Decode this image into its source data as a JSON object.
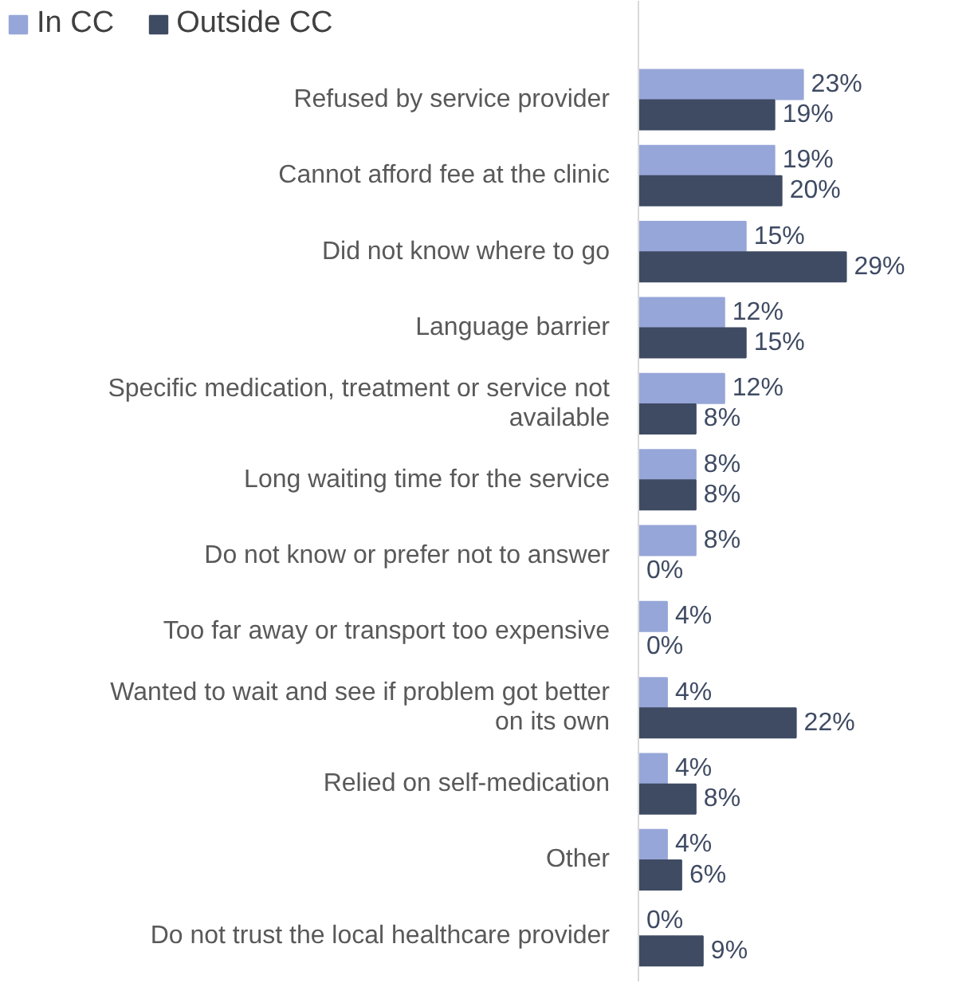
{
  "chart_data": {
    "type": "bar",
    "orientation": "horizontal",
    "relative": false,
    "categories": [
      "Refused by service provider",
      "Cannot afford fee at the clinic",
      "Did not know where to go",
      "Language barrier",
      "Specific medication, treatment or service not available",
      "Long waiting time for the service",
      "Do not know or prefer not to answer",
      "Too far away or transport too expensive",
      "Wanted to wait and see if problem got better on its own",
      "Relied on self-medication",
      "Other",
      "Do not trust the local healthcare provider"
    ],
    "series": [
      {
        "name": "In CC",
        "color": "#97a6d8",
        "values": [
          23,
          19,
          15,
          12,
          12,
          8,
          8,
          4,
          4,
          4,
          4,
          0
        ],
        "value_labels": [
          "23%",
          "19%",
          "15%",
          "12%",
          "12%",
          "8%",
          "8%",
          "4%",
          "4%",
          "4%",
          "4%",
          "0%"
        ]
      },
      {
        "name": "Outside CC",
        "color": "#3f4b63",
        "values": [
          19,
          20,
          29,
          15,
          8,
          8,
          0,
          0,
          22,
          8,
          6,
          9
        ],
        "value_labels": [
          "19%",
          "20%",
          "29%",
          "15%",
          "8%",
          "8%",
          "0%",
          "0%",
          "22%",
          "8%",
          "6%",
          "9%"
        ]
      }
    ],
    "legend": "top left"
  }
}
